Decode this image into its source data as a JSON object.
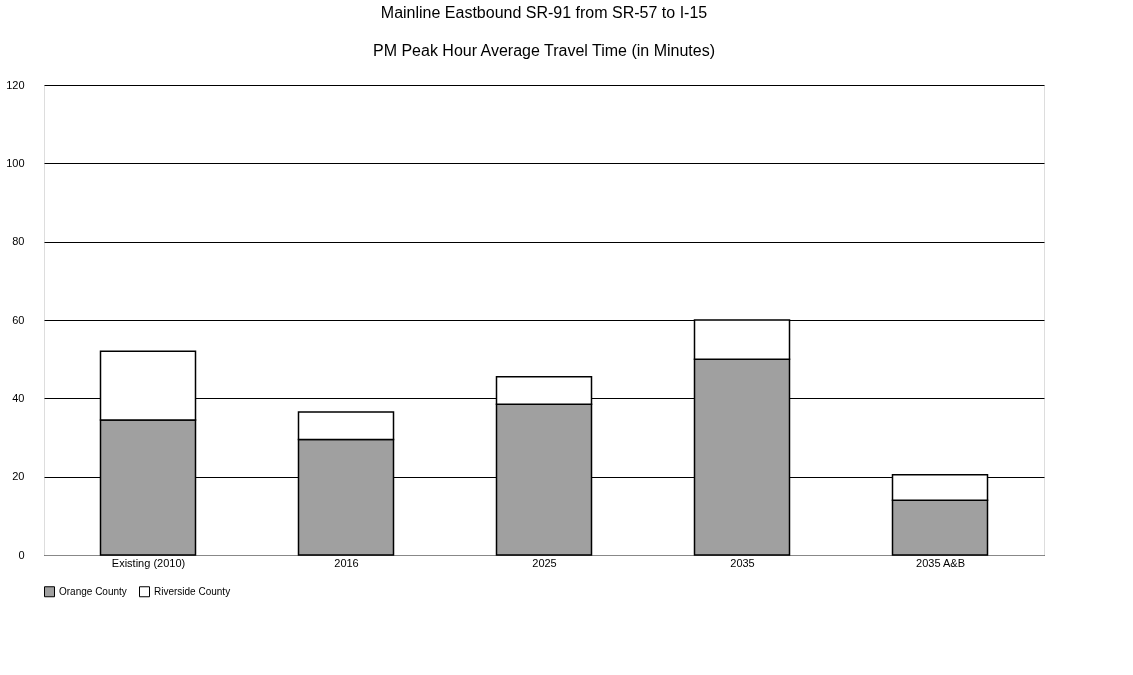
{
  "chart_data": {
    "type": "bar",
    "title": "Mainline Eastbound SR-91 from SR-57 to I-15",
    "subtitle": "PM Peak Hour Average Travel Time (in Minutes)",
    "categories": [
      "Existing (2010)",
      "2016",
      "2025",
      "2035",
      "2035 A&B"
    ],
    "series": [
      {
        "name": "Orange County",
        "color": "#a0a0a0",
        "values": [
          34.5,
          29.5,
          38.5,
          50,
          14
        ]
      },
      {
        "name": "Riverside County",
        "color": "#ffffff",
        "values": [
          17.5,
          7,
          7,
          10,
          6.5
        ]
      }
    ],
    "stacked": true,
    "ylim": [
      0,
      120
    ],
    "yticks": [
      0,
      20,
      40,
      60,
      80,
      100,
      120
    ],
    "grid": "y",
    "legend": "bottom"
  }
}
